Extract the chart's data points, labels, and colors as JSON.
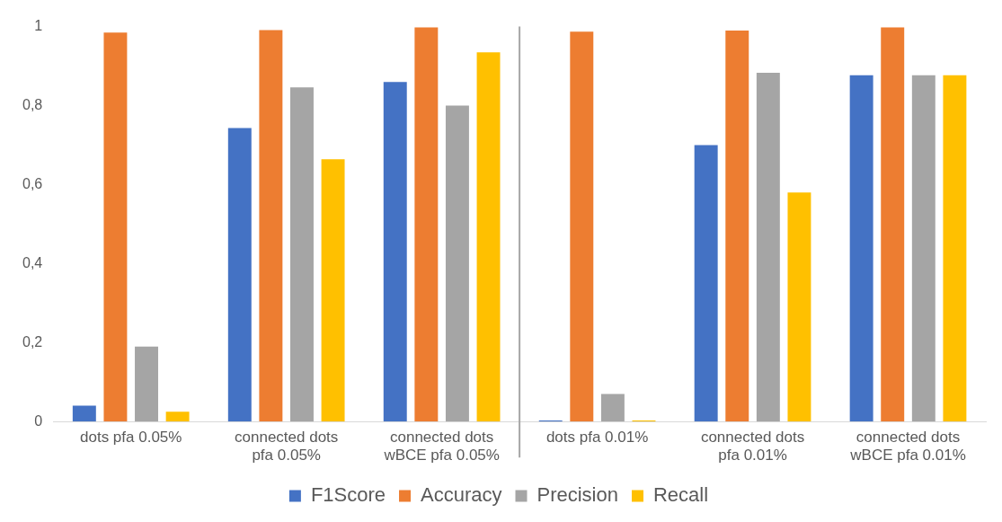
{
  "chart_data": {
    "type": "bar",
    "categories": [
      "dots pfa 0.05%",
      "connected dots pfa 0.05%",
      "connected dots wBCE pfa 0.05%",
      "dots pfa 0.01%",
      "connected dots pfa 0.01%",
      "connected dots wBCE pfa 0.01%"
    ],
    "series": [
      {
        "name": "F1Score",
        "color": "#4472c4",
        "values": [
          0.04,
          0.743,
          0.86,
          0.003,
          0.7,
          0.877
        ]
      },
      {
        "name": "Accuracy",
        "color": "#ed7d31",
        "values": [
          0.985,
          0.991,
          0.998,
          0.987,
          0.99,
          0.998
        ]
      },
      {
        "name": "Precision",
        "color": "#a5a5a5",
        "values": [
          0.19,
          0.846,
          0.8,
          0.07,
          0.883,
          0.877
        ]
      },
      {
        "name": "Recall",
        "color": "#ffc000",
        "values": [
          0.025,
          0.664,
          0.935,
          0.003,
          0.58,
          0.877
        ]
      }
    ],
    "ylim": [
      0,
      1
    ],
    "yticks": [
      0,
      {
        "value": 0.2,
        "label": "0,2"
      },
      {
        "value": 0.4,
        "label": "0,4"
      },
      {
        "value": 0.6,
        "label": "0,6"
      },
      {
        "value": 0.8,
        "label": "0,8"
      },
      1
    ],
    "grid": false,
    "legend": "bottom"
  }
}
